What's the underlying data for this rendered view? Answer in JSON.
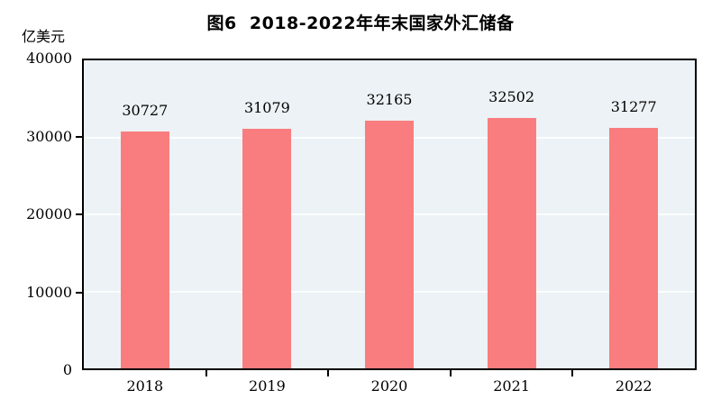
{
  "figure": {
    "title": "图6  2018-2022年年末国家外汇储备",
    "unit_label": "亿美元"
  },
  "chart_data": {
    "type": "bar",
    "title": "图6  2018-2022年年末国家外汇储备",
    "ylabel": "亿美元",
    "xlabel": "",
    "categories": [
      "2018",
      "2019",
      "2020",
      "2021",
      "2022"
    ],
    "series": [
      {
        "name": "年末国家外汇储备",
        "values": [
          30727,
          31079,
          32165,
          32502,
          31277
        ]
      }
    ],
    "data_labels": [
      "30727",
      "31079",
      "32165",
      "32502",
      "31277"
    ],
    "ylim": [
      0,
      40000
    ],
    "yticks": [
      0,
      10000,
      20000,
      30000,
      40000
    ],
    "grid": "horizontal major gridlines, white, on light plot background",
    "legend": "none",
    "colors": {
      "bar": "#f97d7e",
      "plot_background": "#ecf2f5",
      "gridline": "#fbfdfe",
      "axis_frame": "#000000",
      "text": "#000000",
      "page_background": "#ffffff"
    }
  }
}
